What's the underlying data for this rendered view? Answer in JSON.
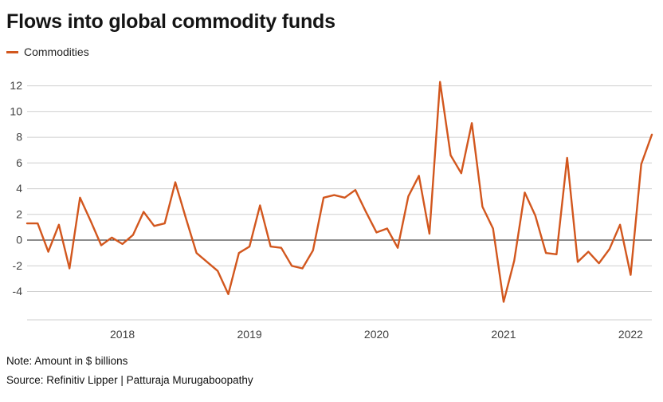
{
  "title": "Flows into global commodity funds",
  "legend": {
    "label": "Commodities",
    "color": "#d2571e"
  },
  "note": "Note: Amount in $ billions",
  "source": "Source: Refinitiv Lipper | Patturaja Murugaboopathy",
  "colors": {
    "line": "#d2571e",
    "grid": "#cfcfcf",
    "zero_line": "#1a1a1a",
    "title_text": "#141414",
    "tick_text": "#404040"
  },
  "chart_data": {
    "type": "line",
    "title": "Flows into global commodity funds",
    "x_start": "2017-04",
    "x_frequency": "monthly",
    "x_tick_labels": [
      "2018",
      "2019",
      "2020",
      "2021",
      "2022"
    ],
    "x_tick_indices": [
      9,
      21,
      33,
      45,
      57
    ],
    "y_ticks": [
      -4,
      -2,
      0,
      2,
      4,
      6,
      8,
      10,
      12
    ],
    "ylim": [
      -6.2,
      13.4
    ],
    "grid": true,
    "zero_line": true,
    "legend_position": "top-left",
    "ylabel": "",
    "xlabel": "",
    "units": "$ billions",
    "series": [
      {
        "name": "Commodities",
        "color": "#d2571e",
        "values": [
          1.3,
          1.3,
          -0.9,
          1.2,
          -2.2,
          3.3,
          1.5,
          -0.4,
          0.2,
          -0.3,
          0.4,
          2.2,
          1.1,
          1.3,
          4.5,
          1.7,
          -1.0,
          -1.7,
          -2.4,
          -4.2,
          -1.0,
          -0.5,
          2.7,
          -0.5,
          -0.6,
          -2.0,
          -2.2,
          -0.8,
          3.3,
          3.5,
          3.3,
          3.9,
          2.2,
          0.6,
          0.9,
          -0.6,
          3.4,
          5.0,
          0.5,
          12.3,
          6.6,
          5.2,
          9.1,
          2.6,
          0.9,
          -4.8,
          -1.6,
          3.7,
          1.9,
          -1.0,
          -1.1,
          6.4,
          -1.7,
          -0.9,
          -1.8,
          -0.7,
          1.2,
          -2.7,
          5.9,
          8.2
        ]
      }
    ]
  }
}
